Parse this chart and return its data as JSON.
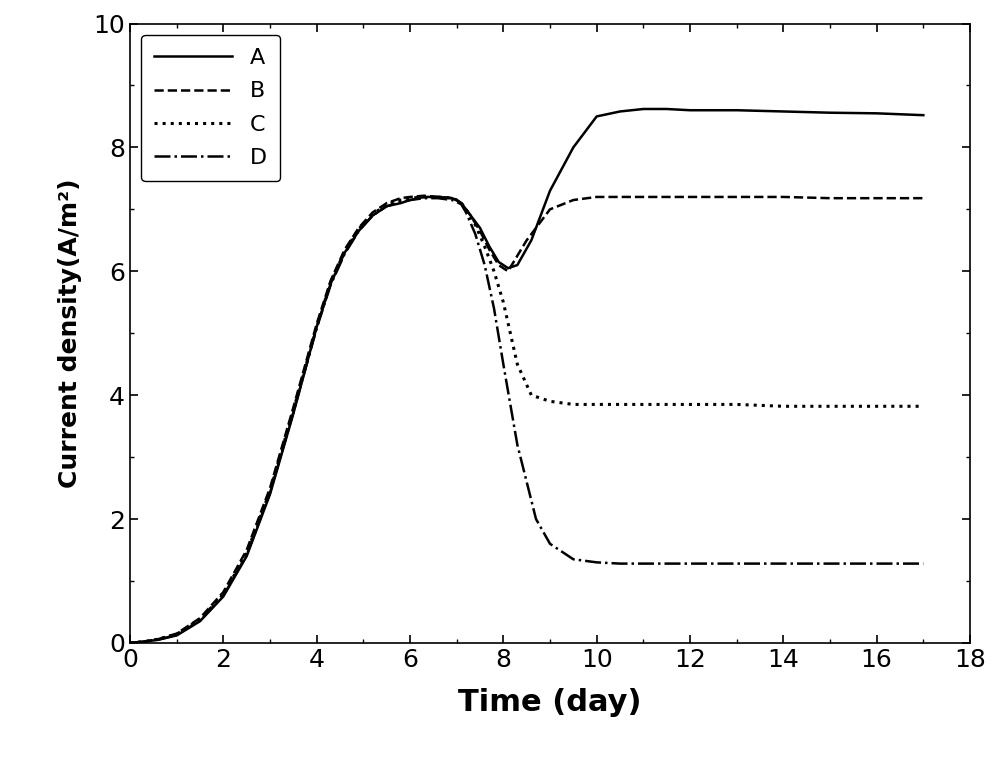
{
  "title": "",
  "xlabel": "Time (day)",
  "ylabel": "Current density(A/m²)",
  "xlim": [
    0,
    17.5
  ],
  "ylim": [
    0,
    10
  ],
  "xticks": [
    0,
    2,
    4,
    6,
    8,
    10,
    12,
    14,
    16,
    18
  ],
  "yticks": [
    0,
    2,
    4,
    6,
    8,
    10
  ],
  "background_color": "#ffffff",
  "line_color": "#000000",
  "series": {
    "A": {
      "label": "A",
      "linestyle": "solid",
      "linewidth": 1.8,
      "x": [
        0,
        0.3,
        0.6,
        1.0,
        1.5,
        2.0,
        2.5,
        3.0,
        3.5,
        4.0,
        4.3,
        4.6,
        4.9,
        5.2,
        5.5,
        5.8,
        6.0,
        6.3,
        6.6,
        6.9,
        7.0,
        7.1,
        7.2,
        7.3,
        7.5,
        7.7,
        7.9,
        8.1,
        8.3,
        8.6,
        9.0,
        9.5,
        10.0,
        10.5,
        11.0,
        11.5,
        12.0,
        13.0,
        14.0,
        15.0,
        16.0,
        17.0
      ],
      "y": [
        0,
        0.02,
        0.05,
        0.12,
        0.35,
        0.75,
        1.4,
        2.4,
        3.7,
        5.1,
        5.8,
        6.3,
        6.65,
        6.9,
        7.05,
        7.1,
        7.15,
        7.2,
        7.2,
        7.18,
        7.15,
        7.1,
        7.0,
        6.9,
        6.7,
        6.4,
        6.15,
        6.05,
        6.1,
        6.5,
        7.3,
        8.0,
        8.5,
        8.58,
        8.62,
        8.62,
        8.6,
        8.6,
        8.58,
        8.56,
        8.55,
        8.52
      ]
    },
    "B": {
      "label": "B",
      "linestyle": "dashed",
      "linewidth": 1.8,
      "x": [
        0,
        0.3,
        0.6,
        1.0,
        1.5,
        2.0,
        2.5,
        3.0,
        3.5,
        4.0,
        4.3,
        4.6,
        4.9,
        5.2,
        5.5,
        5.8,
        6.0,
        6.3,
        6.6,
        6.9,
        7.0,
        7.1,
        7.2,
        7.3,
        7.5,
        7.7,
        7.9,
        8.1,
        8.5,
        9.0,
        9.5,
        10.0,
        10.5,
        11.0,
        12.0,
        13.0,
        14.0,
        15.0,
        16.0,
        17.0
      ],
      "y": [
        0,
        0.02,
        0.06,
        0.15,
        0.4,
        0.82,
        1.5,
        2.5,
        3.8,
        5.15,
        5.85,
        6.35,
        6.7,
        6.95,
        7.1,
        7.18,
        7.2,
        7.22,
        7.2,
        7.18,
        7.15,
        7.1,
        7.0,
        6.9,
        6.65,
        6.35,
        6.1,
        6.0,
        6.5,
        7.0,
        7.15,
        7.2,
        7.2,
        7.2,
        7.2,
        7.2,
        7.2,
        7.18,
        7.18,
        7.18
      ]
    },
    "C": {
      "label": "C",
      "linestyle": "dotted",
      "linewidth": 2.2,
      "x": [
        0,
        0.3,
        0.6,
        1.0,
        1.5,
        2.0,
        2.5,
        3.0,
        3.5,
        4.0,
        4.3,
        4.6,
        4.9,
        5.2,
        5.5,
        5.8,
        6.0,
        6.3,
        6.6,
        6.9,
        7.0,
        7.1,
        7.2,
        7.4,
        7.6,
        7.8,
        8.0,
        8.3,
        8.6,
        9.0,
        9.5,
        10.0,
        11.0,
        12.0,
        13.0,
        14.0,
        15.0,
        16.0,
        17.0
      ],
      "y": [
        0,
        0.02,
        0.06,
        0.14,
        0.38,
        0.78,
        1.45,
        2.45,
        3.75,
        5.1,
        5.82,
        6.32,
        6.68,
        6.92,
        7.08,
        7.15,
        7.18,
        7.2,
        7.2,
        7.18,
        7.15,
        7.1,
        7.0,
        6.75,
        6.4,
        6.0,
        5.5,
        4.5,
        4.0,
        3.9,
        3.85,
        3.85,
        3.85,
        3.85,
        3.85,
        3.82,
        3.82,
        3.82,
        3.82
      ]
    },
    "D": {
      "label": "D",
      "linestyle": "dashdot",
      "linewidth": 1.8,
      "x": [
        0,
        0.3,
        0.6,
        1.0,
        1.5,
        2.0,
        2.5,
        3.0,
        3.5,
        4.0,
        4.3,
        4.6,
        4.9,
        5.2,
        5.5,
        5.8,
        6.0,
        6.3,
        6.6,
        6.9,
        7.0,
        7.1,
        7.2,
        7.4,
        7.6,
        7.8,
        8.0,
        8.3,
        8.7,
        9.0,
        9.5,
        10.0,
        10.5,
        11.0,
        11.5,
        12.0,
        13.0,
        14.0,
        15.0,
        16.0,
        17.0
      ],
      "y": [
        0,
        0.02,
        0.05,
        0.13,
        0.36,
        0.76,
        1.42,
        2.42,
        3.72,
        5.08,
        5.78,
        6.28,
        6.65,
        6.9,
        7.05,
        7.12,
        7.15,
        7.18,
        7.18,
        7.15,
        7.12,
        7.08,
        6.95,
        6.6,
        6.1,
        5.4,
        4.5,
        3.2,
        2.0,
        1.6,
        1.35,
        1.3,
        1.28,
        1.28,
        1.28,
        1.28,
        1.28,
        1.28,
        1.28,
        1.28,
        1.28
      ]
    }
  }
}
